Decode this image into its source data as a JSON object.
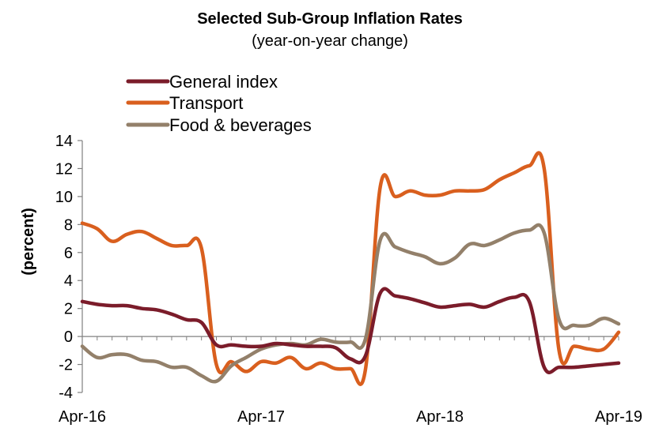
{
  "chart_data": {
    "type": "line",
    "title": "Selected Sub-Group Inflation Rates",
    "subtitle": "(year-on-year change)",
    "xlabel": "",
    "ylabel": "(percent)",
    "ylim": [
      -4,
      14
    ],
    "yticks": [
      "-4",
      "-2",
      "0",
      "2",
      "4",
      "6",
      "8",
      "10",
      "12",
      "14"
    ],
    "xtick_labels": [
      "Apr-16",
      "Apr-17",
      "Apr-18",
      "Apr-19"
    ],
    "x": [
      "Apr-16",
      "May-16",
      "Jun-16",
      "Jul-16",
      "Aug-16",
      "Sep-16",
      "Oct-16",
      "Nov-16",
      "Dec-16",
      "Jan-17",
      "Feb-17",
      "Mar-17",
      "Apr-17",
      "May-17",
      "Jun-17",
      "Jul-17",
      "Aug-17",
      "Sep-17",
      "Oct-17",
      "Nov-17",
      "Dec-17",
      "Jan-18",
      "Feb-18",
      "Mar-18",
      "Apr-18",
      "May-18",
      "Jun-18",
      "Jul-18",
      "Aug-18",
      "Sep-18",
      "Oct-18",
      "Nov-18",
      "Dec-18",
      "Jan-19",
      "Feb-19",
      "Mar-19",
      "Apr-19"
    ],
    "grid": false,
    "legend_position": "top-left",
    "series": [
      {
        "name": "General index",
        "color": "#7b1c2a",
        "values": [
          2.5,
          2.3,
          2.2,
          2.2,
          2.0,
          1.9,
          1.6,
          1.2,
          1.0,
          -0.6,
          -0.6,
          -0.7,
          -0.7,
          -0.5,
          -0.6,
          -0.7,
          -0.7,
          -0.8,
          -1.6,
          -1.4,
          3.1,
          2.9,
          2.7,
          2.4,
          2.1,
          2.2,
          2.3,
          2.1,
          2.5,
          2.8,
          2.5,
          -2.2,
          -2.2,
          -2.2,
          -2.1,
          -2.0,
          -1.9
        ]
      },
      {
        "name": "Transport",
        "color": "#d95f1e",
        "values": [
          8.1,
          7.7,
          6.8,
          7.3,
          7.5,
          7.0,
          6.5,
          6.5,
          6.3,
          -2.0,
          -1.8,
          -2.5,
          -1.8,
          -1.9,
          -1.5,
          -2.3,
          -1.9,
          -2.3,
          -2.3,
          -2.4,
          10.7,
          10.0,
          10.4,
          10.1,
          10.1,
          10.4,
          10.4,
          10.5,
          11.2,
          11.7,
          12.2,
          12.0,
          -1.0,
          -0.7,
          -0.9,
          -0.9,
          0.3
        ]
      },
      {
        "name": "Food & beverages",
        "color": "#93806a",
        "values": [
          -0.7,
          -1.5,
          -1.3,
          -1.3,
          -1.7,
          -1.8,
          -2.2,
          -2.2,
          -2.8,
          -3.2,
          -2.1,
          -1.5,
          -0.9,
          -0.6,
          -0.5,
          -0.6,
          -0.2,
          -0.4,
          -0.4,
          -0.2,
          6.9,
          6.4,
          6.0,
          5.7,
          5.2,
          5.6,
          6.6,
          6.5,
          6.9,
          7.4,
          7.6,
          7.4,
          1.2,
          0.8,
          0.8,
          1.3,
          0.9
        ]
      }
    ]
  }
}
